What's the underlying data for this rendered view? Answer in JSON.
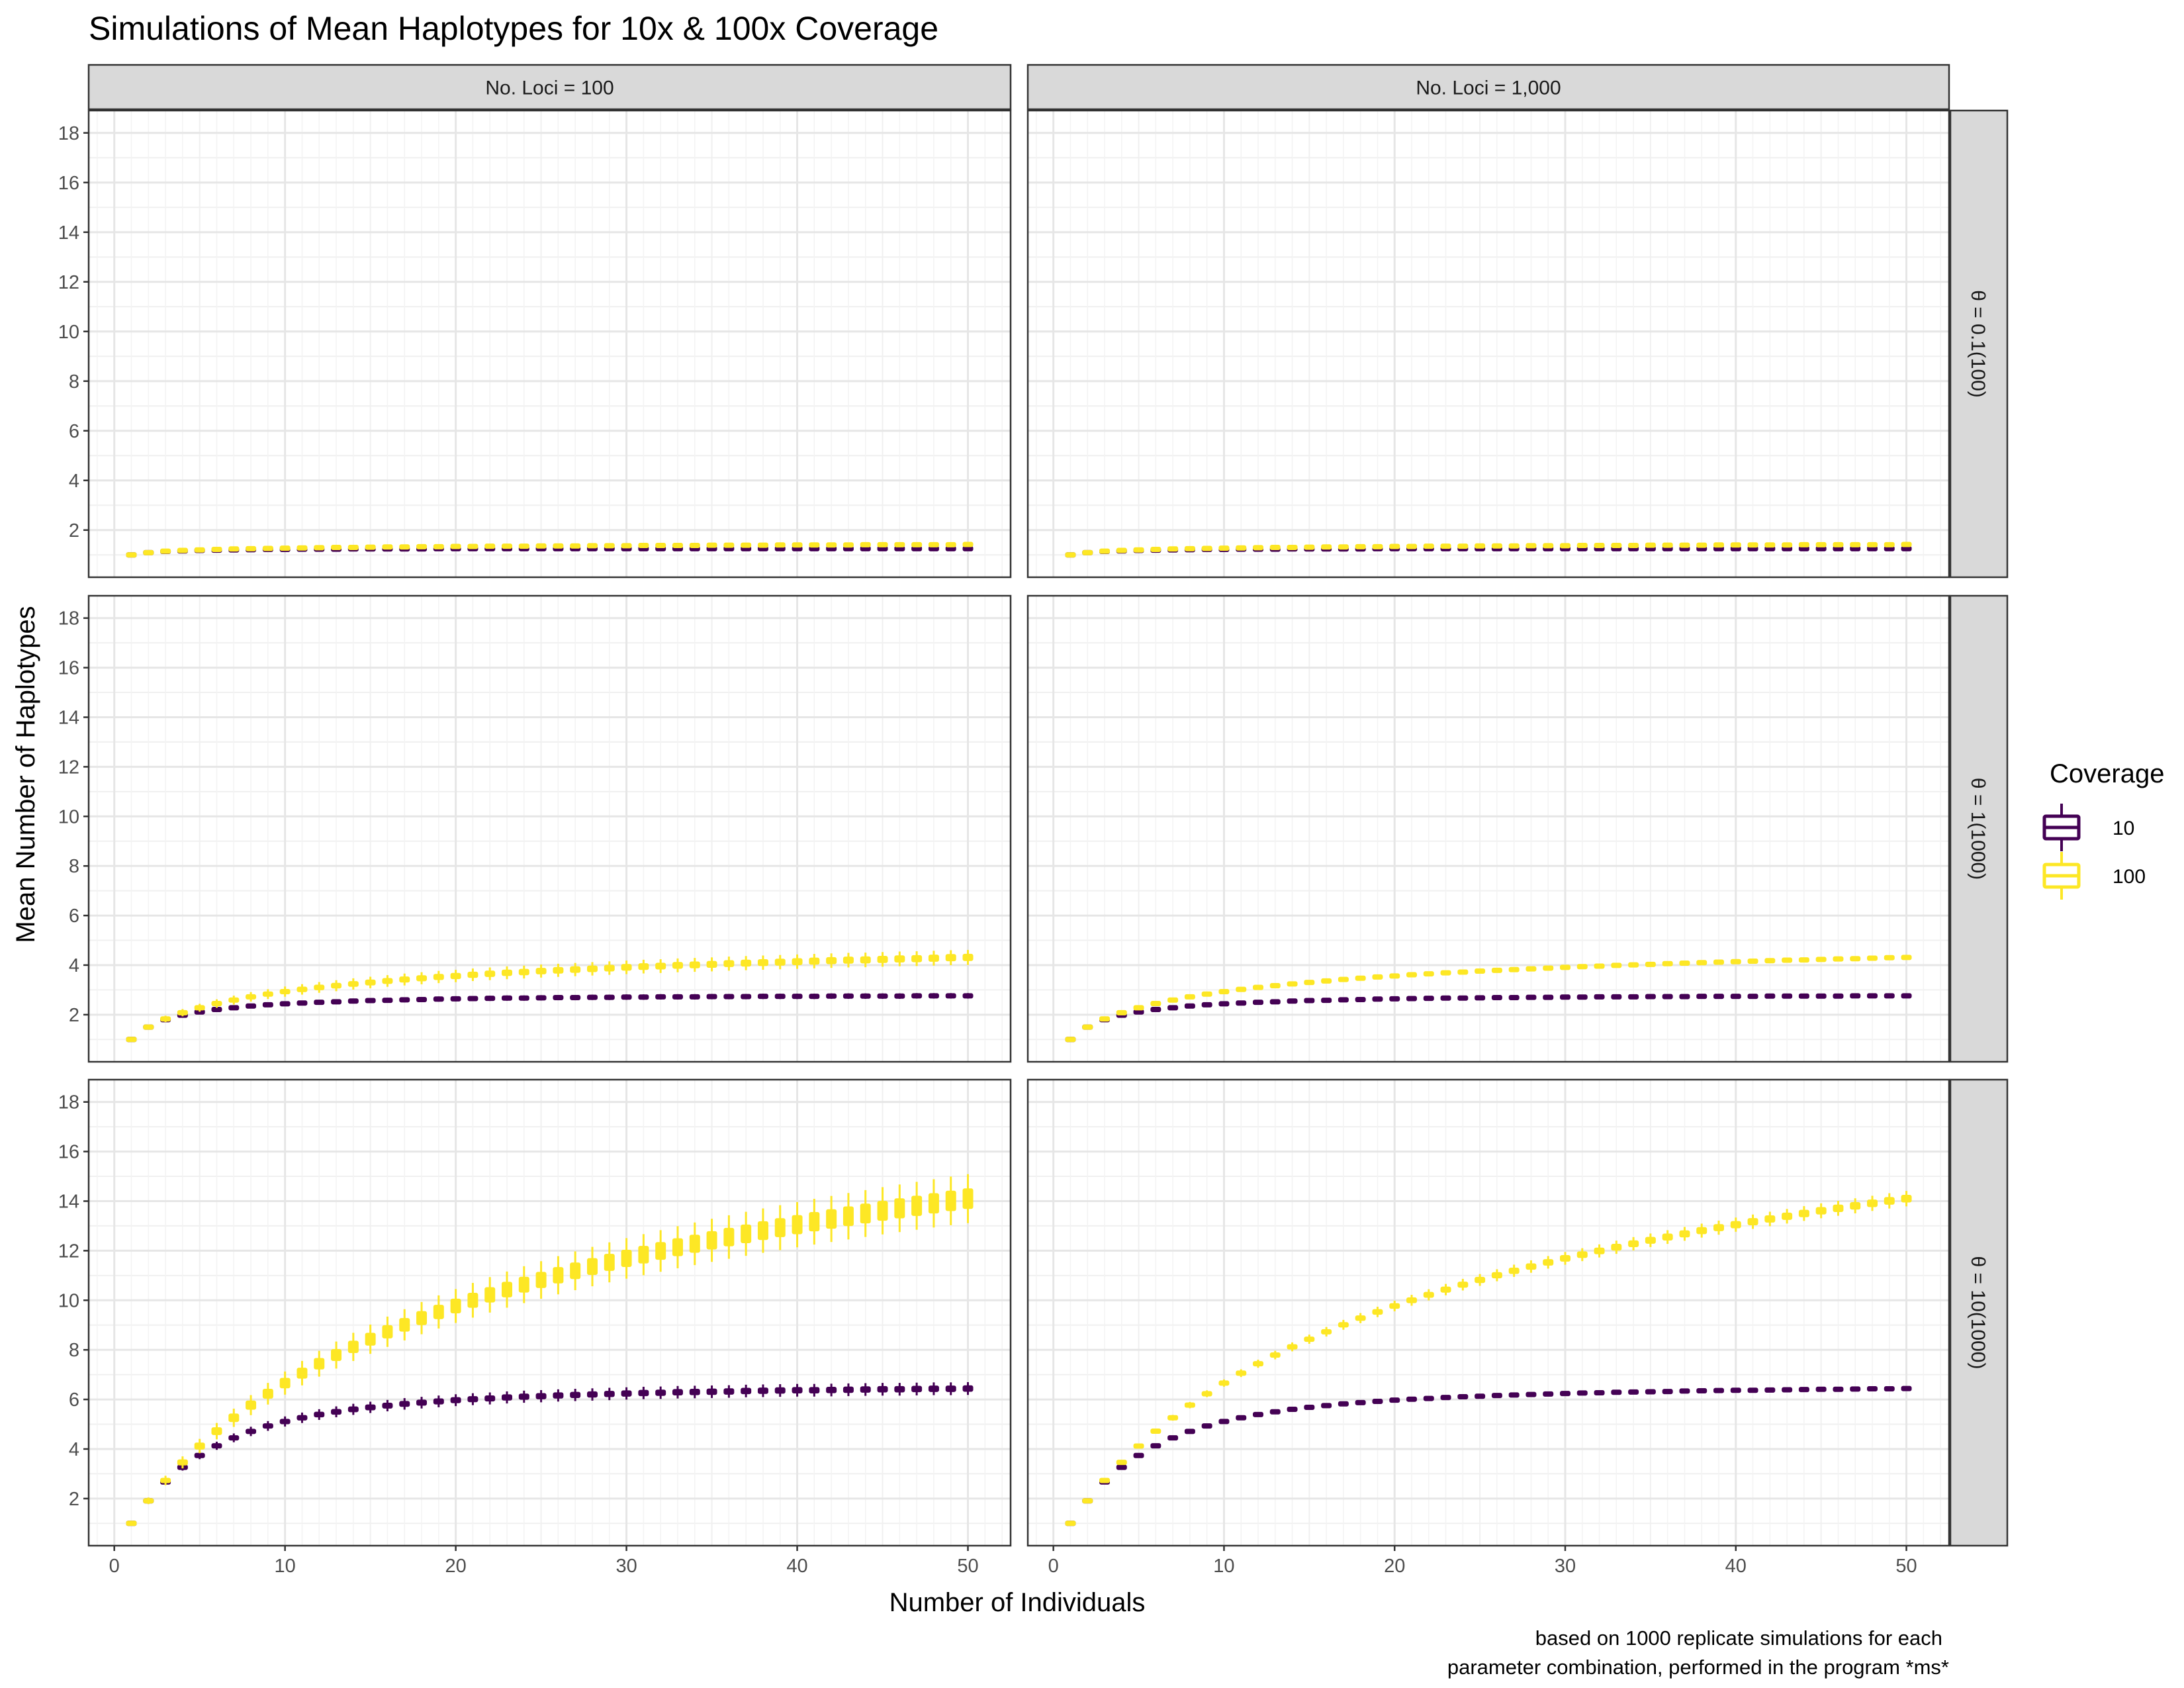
{
  "chart_data": {
    "type": "boxplot",
    "title": "Simulations of Mean Haplotypes for 10x & 100x Coverage",
    "xlabel": "Number of Individuals",
    "ylabel": "Mean Number of Haplotypes",
    "caption_lines": [
      "based on 1000 replicate simulations for each",
      "parameter combination, performed in the program *ms*"
    ],
    "col_facets": [
      "No. Loci = 100",
      "No. Loci = 1,000"
    ],
    "row_facets": [
      "θ = 0.1(100)",
      "θ = 1(1000)",
      "θ = 10(1000)"
    ],
    "x_ticks": [
      0,
      10,
      20,
      30,
      40,
      50
    ],
    "x_range": [
      -1.5,
      52.5
    ],
    "y_ticks": [
      2,
      4,
      6,
      8,
      10,
      12,
      14,
      16,
      18
    ],
    "y_range": [
      0.1,
      18.9
    ],
    "grid": true,
    "legend": {
      "title": "Coverage",
      "position": "right",
      "entries": [
        {
          "label": "10",
          "color": "#440154"
        },
        {
          "label": "100",
          "color": "#FDE725"
        }
      ]
    },
    "x": [
      1,
      2,
      3,
      4,
      5,
      6,
      7,
      8,
      9,
      10,
      11,
      12,
      13,
      14,
      15,
      16,
      17,
      18,
      19,
      20,
      21,
      22,
      23,
      24,
      25,
      26,
      27,
      28,
      29,
      30,
      31,
      32,
      33,
      34,
      35,
      36,
      37,
      38,
      39,
      40,
      41,
      42,
      43,
      44,
      45,
      46,
      47,
      48,
      49,
      50
    ],
    "series": [
      {
        "row": 0,
        "coverage": "10",
        "color": "#440154",
        "median": [
          1.0,
          1.09,
          1.14,
          1.16,
          1.18,
          1.19,
          1.2,
          1.21,
          1.22,
          1.22,
          1.23,
          1.23,
          1.23,
          1.24,
          1.24,
          1.24,
          1.24,
          1.24,
          1.25,
          1.25,
          1.25,
          1.25,
          1.25,
          1.25,
          1.25,
          1.25,
          1.25,
          1.25,
          1.25,
          1.25,
          1.25,
          1.25,
          1.25,
          1.25,
          1.25,
          1.25,
          1.25,
          1.25,
          1.25,
          1.25,
          1.25,
          1.25,
          1.25,
          1.25,
          1.25,
          1.25,
          1.25,
          1.25,
          1.25,
          1.25
        ]
      },
      {
        "row": 0,
        "coverage": "100",
        "color": "#FDE725",
        "median": [
          1.0,
          1.09,
          1.15,
          1.18,
          1.2,
          1.22,
          1.24,
          1.25,
          1.26,
          1.27,
          1.28,
          1.29,
          1.3,
          1.3,
          1.31,
          1.32,
          1.32,
          1.33,
          1.33,
          1.34,
          1.34,
          1.35,
          1.35,
          1.35,
          1.36,
          1.36,
          1.36,
          1.37,
          1.37,
          1.37,
          1.38,
          1.38,
          1.38,
          1.38,
          1.39,
          1.39,
          1.39,
          1.39,
          1.4,
          1.4,
          1.4,
          1.4,
          1.4,
          1.41,
          1.41,
          1.41,
          1.41,
          1.41,
          1.41,
          1.42
        ]
      },
      {
        "row": 1,
        "coverage": "10",
        "color": "#440154",
        "median": [
          1.0,
          1.5,
          1.8,
          1.98,
          2.11,
          2.21,
          2.28,
          2.35,
          2.4,
          2.44,
          2.47,
          2.5,
          2.52,
          2.55,
          2.57,
          2.58,
          2.6,
          2.61,
          2.63,
          2.64,
          2.65,
          2.66,
          2.67,
          2.67,
          2.68,
          2.69,
          2.69,
          2.7,
          2.7,
          2.71,
          2.71,
          2.72,
          2.72,
          2.72,
          2.73,
          2.73,
          2.73,
          2.74,
          2.74,
          2.74,
          2.74,
          2.75,
          2.75,
          2.75,
          2.75,
          2.75,
          2.76,
          2.76,
          2.76,
          2.76
        ]
      },
      {
        "row": 1,
        "coverage": "100",
        "color": "#FDE725",
        "median": [
          1.0,
          1.5,
          1.83,
          2.08,
          2.28,
          2.45,
          2.59,
          2.72,
          2.83,
          2.93,
          3.02,
          3.1,
          3.17,
          3.24,
          3.3,
          3.36,
          3.42,
          3.47,
          3.52,
          3.56,
          3.61,
          3.65,
          3.69,
          3.72,
          3.76,
          3.79,
          3.82,
          3.85,
          3.88,
          3.91,
          3.94,
          3.96,
          3.99,
          4.01,
          4.03,
          4.06,
          4.08,
          4.1,
          4.12,
          4.14,
          4.16,
          4.18,
          4.2,
          4.21,
          4.23,
          4.25,
          4.26,
          4.28,
          4.3,
          4.31
        ]
      },
      {
        "row": 2,
        "coverage": "10",
        "color": "#440154",
        "median": [
          1.0,
          1.91,
          2.67,
          3.26,
          3.74,
          4.13,
          4.45,
          4.71,
          4.93,
          5.11,
          5.26,
          5.39,
          5.5,
          5.6,
          5.68,
          5.75,
          5.82,
          5.87,
          5.92,
          5.97,
          6.01,
          6.04,
          6.08,
          6.11,
          6.13,
          6.16,
          6.18,
          6.2,
          6.22,
          6.24,
          6.26,
          6.27,
          6.29,
          6.3,
          6.31,
          6.32,
          6.34,
          6.35,
          6.36,
          6.37,
          6.37,
          6.38,
          6.39,
          6.4,
          6.41,
          6.41,
          6.42,
          6.43,
          6.43,
          6.44
        ]
      },
      {
        "row": 2,
        "coverage": "100",
        "color": "#FDE725",
        "median": [
          1.0,
          1.91,
          2.73,
          3.46,
          4.12,
          4.72,
          5.26,
          5.77,
          6.23,
          6.66,
          7.06,
          7.44,
          7.79,
          8.12,
          8.43,
          8.73,
          9.01,
          9.28,
          9.53,
          9.77,
          10.0,
          10.22,
          10.43,
          10.63,
          10.82,
          11.01,
          11.19,
          11.36,
          11.53,
          11.69,
          11.84,
          11.99,
          12.14,
          12.28,
          12.42,
          12.55,
          12.68,
          12.81,
          12.93,
          13.05,
          13.17,
          13.28,
          13.39,
          13.5,
          13.61,
          13.71,
          13.81,
          13.91,
          14.01,
          14.1
        ]
      }
    ]
  }
}
